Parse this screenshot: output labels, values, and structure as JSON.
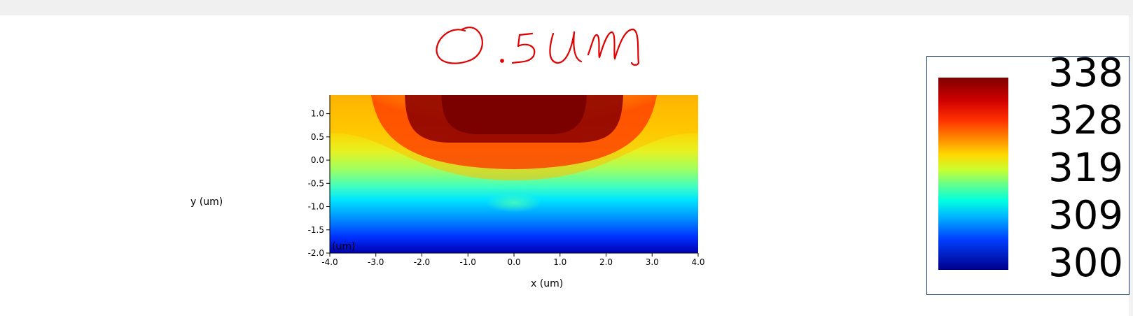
{
  "chart_data": {
    "type": "heatmap",
    "title": "",
    "annotation": "0.5 um",
    "xlabel": "x (um)",
    "ylabel": "y (um)",
    "axis_unit_inset": "(um)",
    "xlim": [
      -4.0,
      4.0
    ],
    "ylim": [
      -2.0,
      1.4
    ],
    "x_ticks": [
      "-4.0",
      "-3.0",
      "-2.0",
      "-1.0",
      "0.0",
      "1.0",
      "2.0",
      "3.0",
      "4.0"
    ],
    "y_ticks": [
      "1.0",
      "0.5",
      "0.0",
      "-0.5",
      "-1.0",
      "-1.5",
      "-2.0"
    ],
    "colormap": "jet",
    "value_range": [
      300,
      338
    ],
    "colorbar_labels": [
      "338",
      "328",
      "319",
      "309",
      "300"
    ],
    "field_description": {
      "hot_region": {
        "x_range": [
          -2.5,
          2.5
        ],
        "y_range": [
          0.4,
          1.4
        ],
        "value": 338
      },
      "bottom_value": 300,
      "edge_top_value": 326
    }
  },
  "colors": {
    "annotation": "#e00000",
    "legend_border": "#1f3a6e",
    "background": "#ffffff"
  }
}
